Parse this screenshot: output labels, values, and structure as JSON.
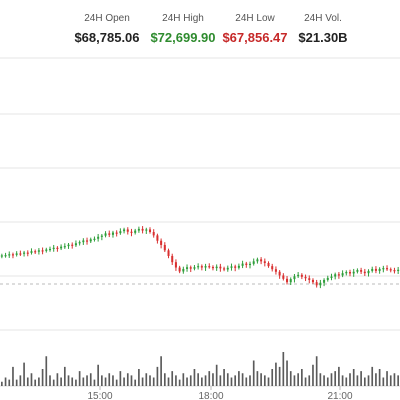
{
  "stats": {
    "open": {
      "label": "24H Open",
      "value": "$68,785.06",
      "color": "#222222"
    },
    "high": {
      "label": "24H High",
      "value": "$72,699.90",
      "color": "#2e8b2e"
    },
    "low": {
      "label": "24H Low",
      "value": "$67,856.47",
      "color": "#c62828"
    },
    "volume": {
      "label": "24H Vol.",
      "value": "$21.30B",
      "color": "#222222"
    }
  },
  "chart_data": {
    "type": "candlestick",
    "x_ticks": [
      "15:00",
      "18:00",
      "21:00"
    ],
    "colors": {
      "up": "#2e9e3a",
      "down": "#d93030",
      "volume": "#5a5a5a",
      "grid": "#e6e6e6",
      "reference": "#bbbbbb"
    },
    "reference_line": "dashed",
    "closes": [
      0.3,
      0.301,
      0.304,
      0.302,
      0.307,
      0.306,
      0.31,
      0.309,
      0.315,
      0.313,
      0.318,
      0.316,
      0.321,
      0.323,
      0.327,
      0.325,
      0.331,
      0.333,
      0.338,
      0.336,
      0.343,
      0.347,
      0.353,
      0.35,
      0.357,
      0.359,
      0.366,
      0.37,
      0.378,
      0.373,
      0.381,
      0.379,
      0.386,
      0.392,
      0.384,
      0.38,
      0.388,
      0.394,
      0.388,
      0.392,
      0.383,
      0.371,
      0.352,
      0.337,
      0.318,
      0.298,
      0.276,
      0.257,
      0.243,
      0.252,
      0.258,
      0.253,
      0.258,
      0.262,
      0.257,
      0.262,
      0.259,
      0.255,
      0.26,
      0.254,
      0.25,
      0.256,
      0.261,
      0.256,
      0.263,
      0.271,
      0.266,
      0.27,
      0.279,
      0.286,
      0.279,
      0.273,
      0.262,
      0.251,
      0.242,
      0.229,
      0.217,
      0.205,
      0.216,
      0.226,
      0.231,
      0.224,
      0.219,
      0.213,
      0.205,
      0.194,
      0.203,
      0.213,
      0.22,
      0.225,
      0.233,
      0.229,
      0.237,
      0.241,
      0.236,
      0.242,
      0.248,
      0.242,
      0.237,
      0.245,
      0.252,
      0.245,
      0.252,
      0.255,
      0.251,
      0.248,
      0.246,
      0.249
    ],
    "volumes": [
      2,
      4,
      3,
      9,
      3,
      5,
      11,
      4,
      6,
      3,
      4,
      8,
      14,
      5,
      3,
      6,
      4,
      9,
      5,
      4,
      3,
      7,
      4,
      5,
      6,
      3,
      10,
      5,
      4,
      6,
      5,
      3,
      7,
      4,
      6,
      5,
      3,
      8,
      4,
      6,
      5,
      4,
      9,
      14,
      6,
      4,
      7,
      5,
      3,
      6,
      4,
      5,
      8,
      6,
      4,
      5,
      7,
      6,
      10,
      5,
      8,
      6,
      4,
      5,
      7,
      6,
      4,
      5,
      12,
      7,
      6,
      5,
      4,
      8,
      11,
      9,
      16,
      12,
      7,
      5,
      6,
      8,
      4,
      5,
      10,
      14,
      6,
      5,
      4,
      6,
      7,
      9,
      5,
      4,
      6,
      8,
      5,
      7,
      4,
      5,
      9,
      6,
      8,
      4,
      7,
      5,
      6,
      5
    ]
  }
}
